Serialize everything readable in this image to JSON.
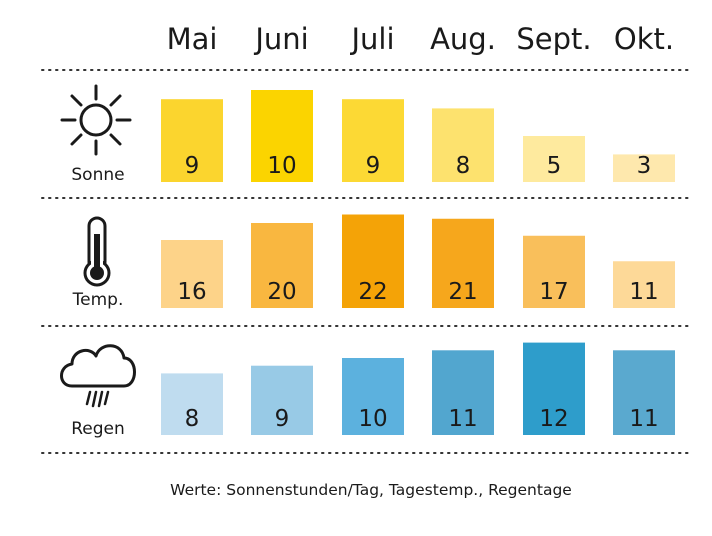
{
  "chart_data": {
    "type": "bar",
    "categories": [
      "Mai",
      "Juni",
      "Juli",
      "Aug.",
      "Sept.",
      "Okt."
    ],
    "rows": [
      {
        "label": "Sonne",
        "icon": "sun-icon",
        "values": [
          9,
          10,
          9,
          8,
          5,
          3
        ],
        "colors": [
          "#fbd52e",
          "#fbd400",
          "#fcd934",
          "#fde26e",
          "#feea9e",
          "#fee8ad"
        ]
      },
      {
        "label": "Temp.",
        "icon": "thermometer-icon",
        "values": [
          16,
          20,
          22,
          21,
          17,
          11
        ],
        "colors": [
          "#fdd389",
          "#f9b740",
          "#f4a307",
          "#f6a71c",
          "#f9bf5b",
          "#fdd998"
        ]
      },
      {
        "label": "Regen",
        "icon": "rain-cloud-icon",
        "values": [
          8,
          9,
          10,
          11,
          12,
          11
        ],
        "colors": [
          "#bfdcef",
          "#98cae6",
          "#5cb1de",
          "#52a6cf",
          "#2e9dcb",
          "#5aa9cf"
        ]
      }
    ]
  },
  "footer": "Werte: Sonnenstunden/Tag, Tagestemp., Regentage"
}
